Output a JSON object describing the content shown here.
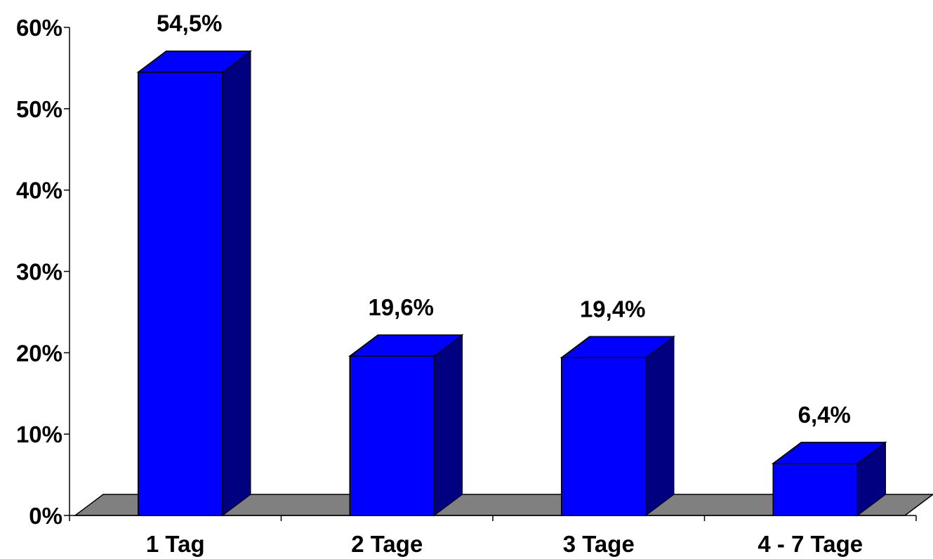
{
  "chart_data": {
    "type": "bar",
    "style": "3d-column",
    "title": "",
    "xlabel": "",
    "ylabel": "",
    "categories": [
      "1 Tag",
      "2 Tage",
      "3 Tage",
      "4 - 7 Tage"
    ],
    "values": [
      54.5,
      19.6,
      19.4,
      6.4
    ],
    "data_labels": [
      "54,5%",
      "19,6%",
      "19,4%",
      "6,4%"
    ],
    "ylim": [
      0,
      60
    ],
    "y_ticks": [
      0,
      10,
      20,
      30,
      40,
      50,
      60
    ],
    "y_tick_labels": [
      "0%",
      "10%",
      "20%",
      "30%",
      "40%",
      "50%",
      "60%"
    ],
    "grid": false,
    "legend": "none",
    "colors": {
      "bar_front": "#0000FF",
      "bar_side": "#000080",
      "floor": "#808080",
      "axis": "#000000",
      "text": "#000000"
    }
  }
}
